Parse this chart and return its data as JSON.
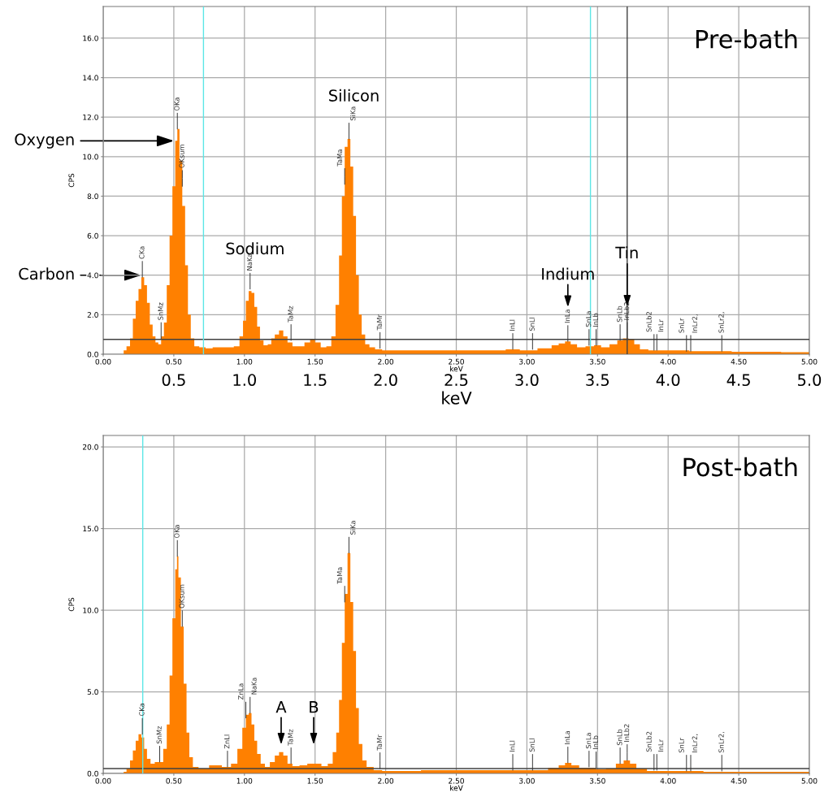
{
  "chart_data": [
    {
      "type": "area",
      "title": "Pre-bath",
      "xlabel": "keV",
      "ylabel": "CPS",
      "x2label": "keV",
      "xlim": [
        0,
        5
      ],
      "xticks": [
        {
          "value": 0,
          "label": "0.00"
        },
        {
          "value": 0.5,
          "label": "0.50"
        },
        {
          "value": 1,
          "label": "1.00"
        },
        {
          "value": 1.5,
          "label": "1.50"
        },
        {
          "value": 2,
          "label": "2.00"
        },
        {
          "value": 2.5,
          "label": "2.50"
        },
        {
          "value": 3,
          "label": "3.00"
        },
        {
          "value": 3.5,
          "label": "3.50"
        },
        {
          "value": 4,
          "label": "4.00"
        },
        {
          "value": 4.5,
          "label": "4.50"
        },
        {
          "value": 5,
          "label": "5.00"
        }
      ],
      "x2lim": [
        0,
        5
      ],
      "x2ticks": [
        {
          "value": 0.5,
          "label": "0.5"
        },
        {
          "value": 1,
          "label": "1.0"
        },
        {
          "value": 1.5,
          "label": "1.5"
        },
        {
          "value": 2,
          "label": "2.0"
        },
        {
          "value": 2.5,
          "label": "2.5"
        },
        {
          "value": 3,
          "label": "3.0"
        },
        {
          "value": 3.5,
          "label": "3.5"
        },
        {
          "value": 4,
          "label": "4.0"
        },
        {
          "value": 4.5,
          "label": "4.5"
        },
        {
          "value": 5,
          "label": "5.0"
        }
      ],
      "ylim": [
        0,
        17.6
      ],
      "yticks": [
        {
          "value": 0,
          "label": "0.0"
        },
        {
          "value": 2,
          "label": "2.0"
        },
        {
          "value": 4,
          "label": "4.0"
        },
        {
          "value": 6,
          "label": "6.0"
        },
        {
          "value": 8,
          "label": "8.0"
        },
        {
          "value": 10,
          "label": "10.0"
        },
        {
          "value": 12,
          "label": "12.0"
        },
        {
          "value": 14,
          "label": "14.0"
        },
        {
          "value": 16,
          "label": "16.0"
        }
      ],
      "grid": true,
      "series": [
        {
          "color": "#ff8000",
          "x": [
            0,
            0.14,
            0.15,
            0.18,
            0.2,
            0.22,
            0.24,
            0.26,
            0.28,
            0.3,
            0.32,
            0.34,
            0.36,
            0.38,
            0.4,
            0.42,
            0.44,
            0.46,
            0.48,
            0.5,
            0.52,
            0.53,
            0.55,
            0.57,
            0.59,
            0.61,
            0.63,
            0.66,
            0.7,
            0.75,
            0.8,
            0.85,
            0.9,
            0.95,
            0.98,
            1.0,
            1.02,
            1.04,
            1.06,
            1.08,
            1.1,
            1.12,
            1.15,
            1.18,
            1.2,
            1.23,
            1.26,
            1.29,
            1.32,
            1.36,
            1.4,
            1.45,
            1.48,
            1.52,
            1.56,
            1.6,
            1.63,
            1.66,
            1.68,
            1.7,
            1.72,
            1.74,
            1.76,
            1.78,
            1.8,
            1.82,
            1.84,
            1.87,
            1.9,
            1.95,
            2.0,
            2.2,
            2.5,
            2.8,
            2.9,
            3.0,
            3.15,
            3.2,
            3.25,
            3.29,
            3.33,
            3.38,
            3.45,
            3.5,
            3.55,
            3.62,
            3.66,
            3.7,
            3.74,
            3.78,
            3.82,
            3.9,
            4.0,
            4.3,
            4.6,
            5.0
          ],
          "values": [
            0,
            0,
            0.2,
            0.4,
            0.8,
            1.8,
            2.7,
            3.3,
            3.9,
            3.5,
            2.6,
            1.5,
            0.9,
            0.6,
            0.5,
            0.9,
            1.6,
            3.5,
            6.0,
            8.5,
            10.8,
            11.4,
            9.8,
            7.5,
            4.5,
            2.0,
            0.8,
            0.4,
            0.35,
            0.3,
            0.35,
            0.35,
            0.35,
            0.4,
            0.9,
            1.7,
            2.7,
            3.2,
            3.1,
            2.4,
            1.4,
            0.7,
            0.45,
            0.5,
            0.8,
            1.0,
            1.2,
            0.9,
            0.6,
            0.4,
            0.4,
            0.6,
            0.75,
            0.6,
            0.35,
            0.4,
            0.9,
            2.5,
            5.0,
            8.0,
            10.5,
            10.9,
            9.5,
            7.0,
            4.0,
            2.0,
            1.0,
            0.5,
            0.35,
            0.25,
            0.2,
            0.2,
            0.2,
            0.2,
            0.25,
            0.2,
            0.3,
            0.45,
            0.55,
            0.65,
            0.5,
            0.35,
            0.4,
            0.45,
            0.35,
            0.5,
            0.7,
            0.8,
            0.75,
            0.5,
            0.25,
            0.2,
            0.2,
            0.15,
            0.12,
            0.1
          ]
        }
      ],
      "ref_lines": [
        {
          "axis": "y",
          "value": 0.75,
          "color": "#404040"
        },
        {
          "axis": "x",
          "value": 0.71,
          "color": "#5ce6e6"
        },
        {
          "axis": "x",
          "value": 3.45,
          "color": "#5ce6e6"
        },
        {
          "axis": "x",
          "value": 3.71,
          "color": "#404040"
        }
      ],
      "annotations": [
        {
          "text": "Oxygen",
          "x": 0.5,
          "y": 10.8
        },
        {
          "text": "Carbon",
          "x": 0.27,
          "y": 4.0
        },
        "Sodium",
        "Silicon",
        "Indium",
        {
          "text": "Tin",
          "x": 3.71,
          "y": 2.4
        },
        {
          "text": "CKa",
          "x": 0.277,
          "y": 3.9
        },
        {
          "text": "SnMz",
          "x": 0.41,
          "y": 0.8
        },
        {
          "text": "OKa",
          "x": 0.525,
          "y": 11.4
        },
        {
          "text": "OKsum",
          "x": 0.56,
          "y": 8.5
        },
        {
          "text": "NaKa",
          "x": 1.04,
          "y": 3.3
        },
        {
          "text": "TaMz",
          "x": 1.33,
          "y": 0.7
        },
        {
          "text": "TaMa",
          "x": 1.71,
          "y": 8.6
        },
        {
          "text": "SiKa",
          "x": 1.74,
          "y": 10.9
        },
        {
          "text": "TaMr",
          "x": 1.96,
          "y": 0.3
        },
        {
          "text": "InLl",
          "x": 2.9,
          "y": 0.25
        },
        {
          "text": "SnLl",
          "x": 3.04,
          "y": 0.25
        },
        {
          "text": "InLa",
          "x": 3.29,
          "y": 0.65
        },
        {
          "text": "SnLa",
          "x": 3.44,
          "y": 0.45
        },
        {
          "text": "InLb",
          "x": 3.49,
          "y": 0.45
        },
        {
          "text": "SnLb",
          "x": 3.66,
          "y": 0.7
        },
        {
          "text": "InLb2",
          "x": 3.71,
          "y": 0.8
        },
        {
          "text": "SnLb2",
          "x": 3.9,
          "y": 0.2
        },
        {
          "text": "InLr",
          "x": 3.92,
          "y": 0.2
        },
        {
          "text": "SnLr",
          "x": 4.13,
          "y": 0.15
        },
        {
          "text": "InLr2,",
          "x": 4.16,
          "y": 0.15
        },
        {
          "text": "SnLr2,",
          "x": 4.38,
          "y": 0.15
        }
      ]
    },
    {
      "type": "area",
      "title": "Post-bath",
      "xlabel": "keV",
      "ylabel": "CPS",
      "xlim": [
        0,
        5
      ],
      "xticks": [
        {
          "value": 0,
          "label": "0.00"
        },
        {
          "value": 0.5,
          "label": "0.50"
        },
        {
          "value": 1,
          "label": "1.00"
        },
        {
          "value": 1.5,
          "label": "1.50"
        },
        {
          "value": 2,
          "label": "2.00"
        },
        {
          "value": 2.5,
          "label": "2.50"
        },
        {
          "value": 3,
          "label": "3.00"
        },
        {
          "value": 3.5,
          "label": "3.50"
        },
        {
          "value": 4,
          "label": "4.00"
        },
        {
          "value": 4.5,
          "label": "4.50"
        },
        {
          "value": 5,
          "label": "5.00"
        }
      ],
      "ylim": [
        0,
        20.7
      ],
      "yticks": [
        {
          "value": 0,
          "label": "0.0"
        },
        {
          "value": 5,
          "label": "5.0"
        },
        {
          "value": 10,
          "label": "10.0"
        },
        {
          "value": 15,
          "label": "15.0"
        },
        {
          "value": 20,
          "label": "20.0"
        }
      ],
      "grid": true,
      "series": [
        {
          "color": "#ff8000",
          "x": [
            0,
            0.14,
            0.15,
            0.18,
            0.2,
            0.22,
            0.24,
            0.26,
            0.28,
            0.3,
            0.32,
            0.35,
            0.38,
            0.41,
            0.44,
            0.46,
            0.48,
            0.5,
            0.52,
            0.525,
            0.54,
            0.56,
            0.58,
            0.6,
            0.62,
            0.65,
            0.7,
            0.8,
            0.88,
            0.93,
            0.97,
            1.0,
            1.02,
            1.04,
            1.06,
            1.08,
            1.1,
            1.13,
            1.16,
            1.2,
            1.23,
            1.26,
            1.29,
            1.32,
            1.36,
            1.42,
            1.47,
            1.52,
            1.57,
            1.61,
            1.64,
            1.66,
            1.68,
            1.7,
            1.72,
            1.74,
            1.76,
            1.78,
            1.8,
            1.82,
            1.85,
            1.88,
            1.95,
            2.0,
            2.5,
            2.9,
            3.1,
            3.2,
            3.25,
            3.29,
            3.34,
            3.4,
            3.46,
            3.52,
            3.6,
            3.66,
            3.71,
            3.75,
            3.8,
            3.9,
            4.0,
            4.5,
            5.0
          ],
          "values": [
            0,
            0,
            0.1,
            0.3,
            0.8,
            1.4,
            2.0,
            2.4,
            2.2,
            1.5,
            0.9,
            0.6,
            0.7,
            0.7,
            1.5,
            3.0,
            6.0,
            9.5,
            12.5,
            13.3,
            12.0,
            9.0,
            5.5,
            2.5,
            1.0,
            0.4,
            0.3,
            0.5,
            0.4,
            0.6,
            1.5,
            2.8,
            3.6,
            3.7,
            3.0,
            2.0,
            1.2,
            0.6,
            0.4,
            0.7,
            1.1,
            1.3,
            1.1,
            0.6,
            0.45,
            0.5,
            0.6,
            0.6,
            0.45,
            0.6,
            1.3,
            2.5,
            4.5,
            8.0,
            11.0,
            13.5,
            10.5,
            7.5,
            4.0,
            1.8,
            0.8,
            0.4,
            0.2,
            0.15,
            0.2,
            0.2,
            0.2,
            0.35,
            0.5,
            0.65,
            0.5,
            0.35,
            0.35,
            0.25,
            0.3,
            0.6,
            0.8,
            0.6,
            0.3,
            0.15,
            0.15,
            0.1,
            0.1
          ]
        }
      ],
      "ref_lines": [
        {
          "axis": "y",
          "value": 0.3,
          "color": "#404040"
        },
        {
          "axis": "x",
          "value": 0.28,
          "color": "#5ce6e6"
        }
      ],
      "annotations": [
        "A",
        "B",
        {
          "text": "CKa",
          "x": 0.277,
          "y": 2.4
        },
        {
          "text": "SnMz",
          "x": 0.4,
          "y": 0.7
        },
        {
          "text": "OKa",
          "x": 0.525,
          "y": 13.3
        },
        {
          "text": "OKsum",
          "x": 0.56,
          "y": 9.0
        },
        {
          "text": "ZnLl",
          "x": 0.88,
          "y": 0.4
        },
        {
          "text": "ZnLa",
          "x": 1.01,
          "y": 3.4
        },
        {
          "text": "NaKa",
          "x": 1.04,
          "y": 3.7
        },
        {
          "text": "TaMz",
          "x": 1.33,
          "y": 0.6
        },
        {
          "text": "TaMa",
          "x": 1.71,
          "y": 10.5
        },
        {
          "text": "SiKa",
          "x": 1.74,
          "y": 13.5
        },
        {
          "text": "TaMr",
          "x": 1.96,
          "y": 0.3
        },
        {
          "text": "InLl",
          "x": 2.9,
          "y": 0.2
        },
        {
          "text": "SnLl",
          "x": 3.04,
          "y": 0.2
        },
        {
          "text": "InLa",
          "x": 3.29,
          "y": 0.65
        },
        {
          "text": "SnLa",
          "x": 3.44,
          "y": 0.4
        },
        {
          "text": "InLb",
          "x": 3.49,
          "y": 0.35
        },
        {
          "text": "SnLb",
          "x": 3.66,
          "y": 0.6
        },
        {
          "text": "InLb2",
          "x": 3.71,
          "y": 0.8
        },
        {
          "text": "SnLb2",
          "x": 3.9,
          "y": 0.2
        },
        {
          "text": "InLr",
          "x": 3.92,
          "y": 0.2
        },
        {
          "text": "SnLr",
          "x": 4.13,
          "y": 0.15
        },
        {
          "text": "InLr2,",
          "x": 4.16,
          "y": 0.15
        },
        {
          "text": "SnLr2,",
          "x": 4.38,
          "y": 0.15
        }
      ]
    }
  ]
}
